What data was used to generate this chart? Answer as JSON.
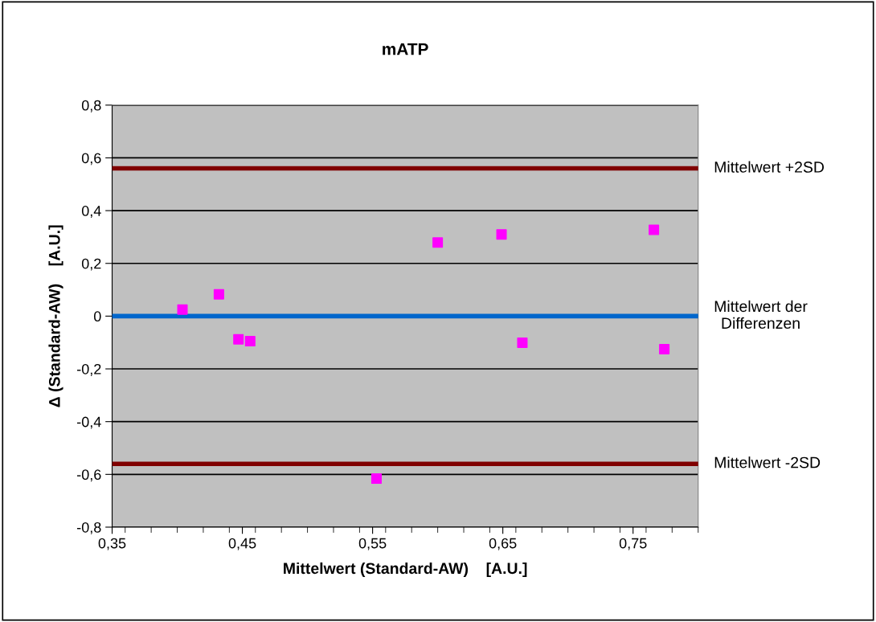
{
  "chart_data": {
    "type": "scatter",
    "title": "mATP",
    "xlabel": "Mittelwert (Standard-AW)    [A.U.]",
    "ylabel": "Δ (Standard-AW)    [A.U.]",
    "x": [
      0.404,
      0.432,
      0.447,
      0.456,
      0.553,
      0.6,
      0.649,
      0.665,
      0.766,
      0.774
    ],
    "series": [
      {
        "color": "#ff00ff",
        "values": [
          0.025,
          0.083,
          -0.088,
          -0.095,
          -0.616,
          0.279,
          0.31,
          -0.101,
          0.327,
          -0.125
        ]
      }
    ],
    "marker": "square",
    "xlim": [
      0.35,
      0.8
    ],
    "xticks": [
      {
        "value": 0.35,
        "label": "0,35"
      },
      {
        "value": 0.45,
        "label": "0,45"
      },
      {
        "value": 0.55,
        "label": "0,55"
      },
      {
        "value": 0.65,
        "label": "0,65"
      },
      {
        "value": 0.75,
        "label": "0,75"
      }
    ],
    "ylim": [
      -0.8,
      0.8
    ],
    "yticks": [
      {
        "value": -0.8,
        "label": "-0,8"
      },
      {
        "value": -0.6,
        "label": "-0,6"
      },
      {
        "value": -0.4,
        "label": "-0,4"
      },
      {
        "value": -0.2,
        "label": "-0,2"
      },
      0,
      {
        "value": 0.2,
        "label": "0,2"
      },
      {
        "value": 0.4,
        "label": "0,4"
      },
      {
        "value": 0.6,
        "label": "0,6"
      },
      {
        "value": 0.8,
        "label": "0,8"
      }
    ],
    "grid": "y",
    "ref_lines": [
      {
        "axis": "y",
        "value": 0.56,
        "label": "Mittelwert +2SD",
        "color": "#800000"
      },
      {
        "axis": "y",
        "value": 0,
        "label": "Mittelwert der\nDifferenzen",
        "color": "#0066cc"
      },
      {
        "axis": "y",
        "value": -0.56,
        "label": "Mittelwert -2SD",
        "color": "#800000"
      }
    ]
  }
}
